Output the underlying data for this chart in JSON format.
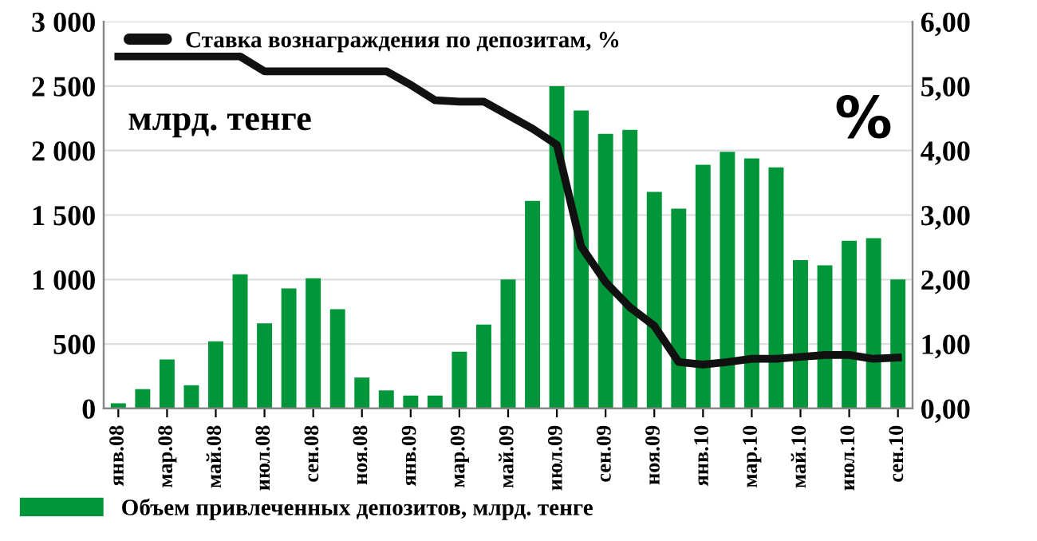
{
  "chart_data": {
    "type": "bar",
    "categories": [
      "янв.08",
      null,
      "мар.08",
      null,
      "май.08",
      null,
      "июл.08",
      null,
      "сен.08",
      null,
      "ноя.08",
      null,
      "янв.09",
      null,
      "мар.09",
      null,
      "май.09",
      null,
      "июл.09",
      null,
      "сен.09",
      null,
      "ноя.09",
      null,
      "янв.10",
      null,
      "мар.10",
      null,
      "май.10",
      null,
      "июл.10",
      null,
      "сен.10"
    ],
    "series": [
      {
        "name": "Объем привлеченных депозитов, млрд. тенге",
        "color": "#009639",
        "values": [
          40,
          150,
          380,
          180,
          520,
          1040,
          660,
          930,
          1010,
          770,
          240,
          140,
          100,
          100,
          440,
          650,
          1000,
          1610,
          2500,
          2310,
          2130,
          2160,
          1680,
          1550,
          1890,
          1990,
          1940,
          1870,
          1150,
          1110,
          1300,
          1320,
          1000
        ]
      },
      {
        "name": "Ставка вознаграждения по депозитам, %",
        "type": "line",
        "axis": "y2",
        "color": "#111111",
        "values": [
          5.46,
          5.46,
          5.46,
          5.46,
          5.46,
          5.46,
          5.23,
          5.23,
          5.23,
          5.23,
          5.23,
          5.23,
          5.02,
          4.78,
          4.76,
          4.76,
          4.55,
          4.34,
          4.09,
          2.51,
          1.96,
          1.57,
          1.28,
          0.72,
          0.68,
          0.72,
          0.77,
          0.77,
          0.8,
          0.83,
          0.83,
          0.77,
          0.79
        ]
      }
    ],
    "ylim": [
      0,
      3000
    ],
    "yticks": [
      0,
      500,
      {
        "value": 1000,
        "label": "1 000"
      },
      {
        "value": 1500,
        "label": "1 500"
      },
      {
        "value": 2000,
        "label": "2 000"
      },
      {
        "value": 2500,
        "label": "2 500"
      },
      {
        "value": 3000,
        "label": "3 000"
      }
    ],
    "y2lim": [
      0,
      6
    ],
    "y2ticks": [
      {
        "value": 0,
        "label": "0,00"
      },
      {
        "value": 1,
        "label": "1,00"
      },
      {
        "value": 2,
        "label": "2,00"
      },
      {
        "value": 3,
        "label": "3,00"
      },
      {
        "value": 4,
        "label": "4,00"
      },
      {
        "value": 5,
        "label": "5,00"
      },
      {
        "value": 6,
        "label": "6,00"
      }
    ],
    "grid": "y",
    "legend": "left",
    "annotations": [
      "млрд. тенге",
      "%"
    ]
  }
}
